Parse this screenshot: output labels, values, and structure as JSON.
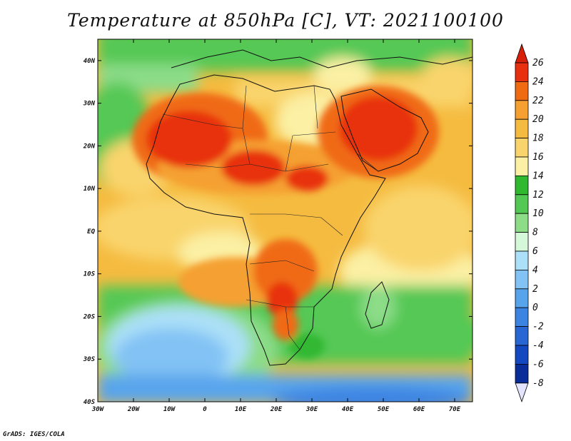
{
  "title": "Temperature at 850hPa [C], VT: 2021100100",
  "credit": "GrADS: IGES/COLA",
  "map": {
    "lon_range": [
      -30,
      75
    ],
    "lat_range": [
      -40,
      45
    ],
    "lat_ticks": [
      "40N",
      "30N",
      "20N",
      "10N",
      "EQ",
      "10S",
      "20S",
      "30S",
      "40S"
    ],
    "lon_ticks": [
      "30W",
      "20W",
      "10W",
      "0",
      "10E",
      "20E",
      "30E",
      "40E",
      "50E",
      "60E",
      "70E"
    ]
  },
  "colorbar": {
    "labels": [
      "26",
      "24",
      "22",
      "20",
      "18",
      "16",
      "14",
      "12",
      "10",
      "8",
      "6",
      "4",
      "2",
      "0",
      "-2",
      "-4",
      "-6",
      "-8"
    ],
    "colors": [
      "#e83010",
      "#f06a12",
      "#f5a030",
      "#f5bb40",
      "#f9d46c",
      "#fbf0a4",
      "#30b830",
      "#54c854",
      "#8cdc88",
      "#d4f8d8",
      "#ace0f8",
      "#82c2f4",
      "#58a4ec",
      "#3c84e2",
      "#2866d4",
      "#1448c0",
      "#0a2c98",
      "#0a1a70"
    ]
  }
}
